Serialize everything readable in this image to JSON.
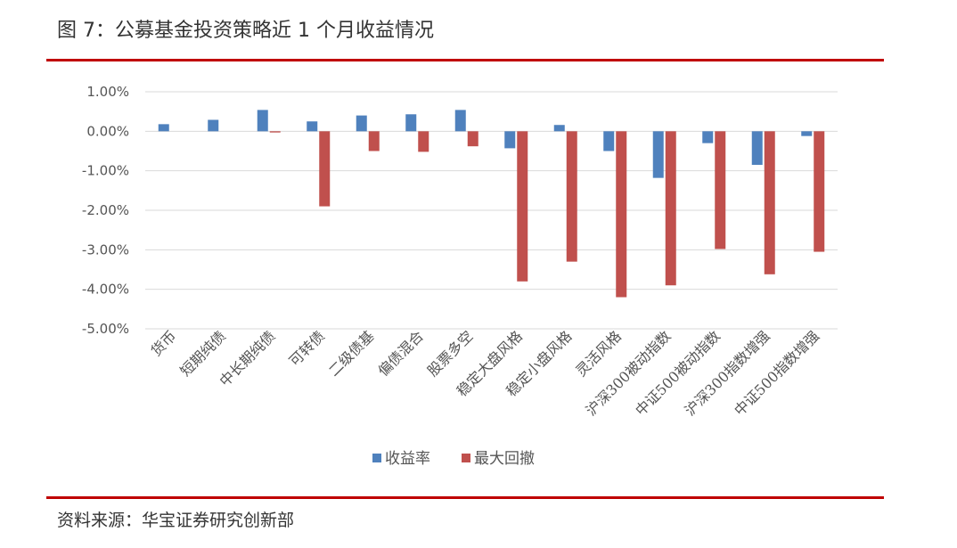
{
  "header": {
    "title": "图 7：公募基金投资策略近 1 个月收益情况"
  },
  "footer": {
    "source": "资料来源：华宝证券研究创新部"
  },
  "chart_data": {
    "type": "bar",
    "title": "",
    "xlabel": "",
    "ylabel": "",
    "ylim": [
      -0.05,
      0.01
    ],
    "yticks": [
      0.01,
      0.0,
      -0.01,
      -0.02,
      -0.03,
      -0.04,
      -0.05
    ],
    "ytick_labels": [
      "1.00%",
      "0.00%",
      "-1.00%",
      "-2.00%",
      "-3.00%",
      "-4.00%",
      "-5.00%"
    ],
    "grid": true,
    "legend_position": "bottom",
    "categories": [
      "货币",
      "短期纯债",
      "中长期纯债",
      "可转债",
      "二级债基",
      "偏债混合",
      "股票多空",
      "稳定大盘风格",
      "稳定小盘风格",
      "灵活风格",
      "沪深300被动指数",
      "中证500被动指数",
      "沪深300指数增强",
      "中证500指数增强"
    ],
    "series": [
      {
        "name": "收益率",
        "color": "#4f81bd",
        "values": [
          0.0018,
          0.0029,
          0.0054,
          0.0025,
          0.004,
          0.0043,
          0.0054,
          -0.0043,
          0.0016,
          -0.005,
          -0.0118,
          -0.003,
          -0.0085,
          -0.0012
        ]
      },
      {
        "name": "最大回撤",
        "color": "#c0504d",
        "values": [
          0.0,
          0.0,
          -0.0003,
          -0.019,
          -0.005,
          -0.0052,
          -0.0038,
          -0.038,
          -0.033,
          -0.042,
          -0.039,
          -0.0298,
          -0.0362,
          -0.0305
        ]
      }
    ]
  }
}
